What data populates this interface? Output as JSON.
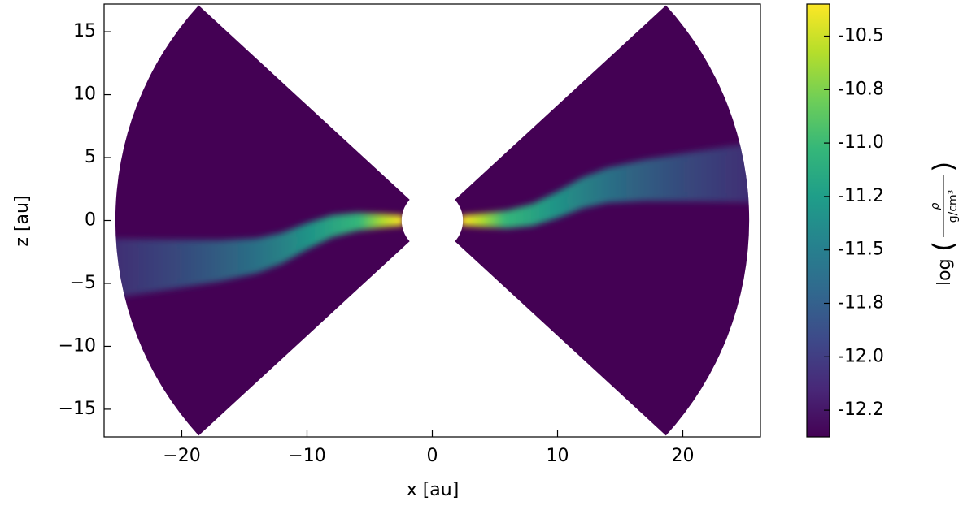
{
  "chart_data": {
    "type": "heatmap",
    "xlabel": "x [au]",
    "ylabel": "z [au]",
    "xlim": [
      -26.2,
      26.2
    ],
    "ylim": [
      -17.2,
      17.2
    ],
    "xticks": [
      {
        "value": -20,
        "label": "−20"
      },
      {
        "value": -10,
        "label": "−10"
      },
      0,
      10,
      20
    ],
    "yticks": [
      {
        "value": -15,
        "label": "−15"
      },
      {
        "value": -10,
        "label": "−10"
      },
      {
        "value": -5,
        "label": "−5"
      },
      0,
      5,
      10,
      15
    ],
    "colormap": [
      "#440154",
      "#482878",
      "#3e4989",
      "#31688e",
      "#26828e",
      "#1f9e89",
      "#35b779",
      "#6ece58",
      "#b5de2b",
      "#fde725"
    ],
    "colorbar": {
      "label": {
        "func": "log",
        "numerator": "ρ",
        "denominator": "g/cm³"
      },
      "lim": [
        -12.375,
        -10.35
      ],
      "ticks": [
        -10.5,
        {
          "value": -10.75,
          "label": "-10.8"
        },
        {
          "value": -11,
          "label": "-11.0"
        },
        {
          "value": -11.25,
          "label": "-11.2"
        },
        -11.5,
        {
          "value": -11.75,
          "label": "-11.8"
        },
        {
          "value": -12,
          "label": "-12.0"
        },
        {
          "value": -12.25,
          "label": "-12.2"
        }
      ]
    }
  }
}
